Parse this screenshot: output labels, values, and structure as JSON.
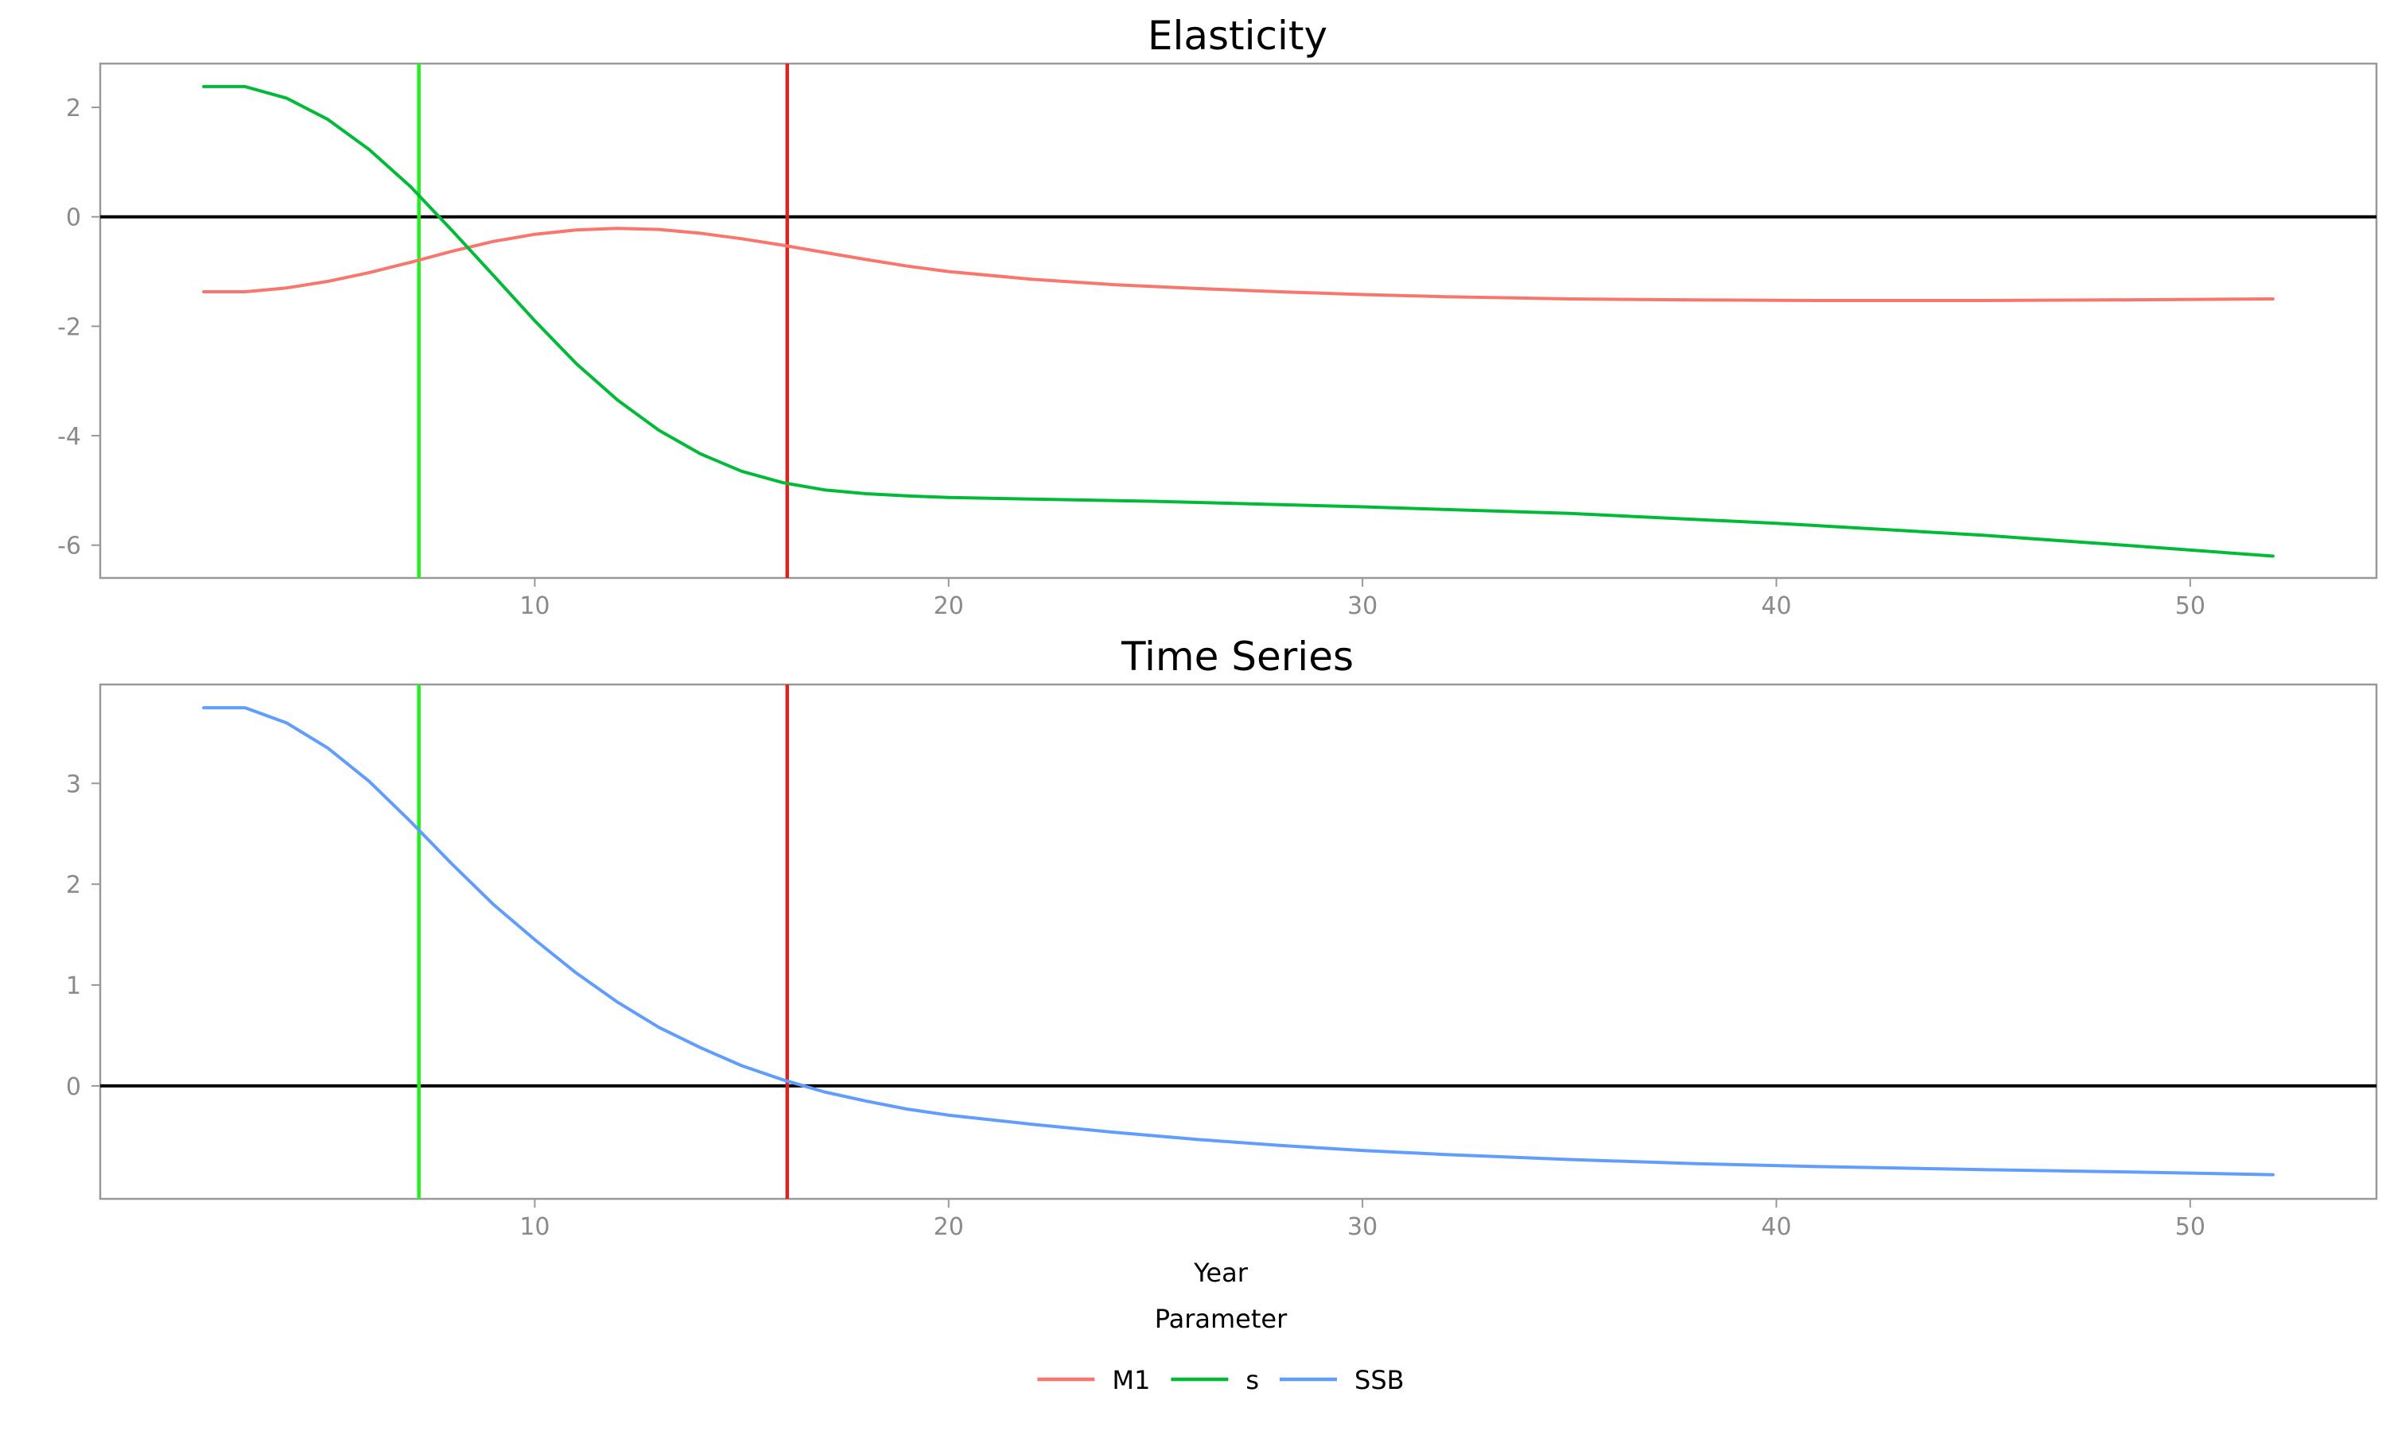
{
  "chart_data": [
    {
      "type": "line",
      "title": "Elasticity",
      "xlabel": "",
      "ylabel": "",
      "xlim": [
        -0.5,
        54.5
      ],
      "ylim": [
        -6.6,
        2.8
      ],
      "xticks": [
        10,
        20,
        30,
        40,
        50
      ],
      "yticks": [
        2,
        0,
        -2,
        -4,
        -6
      ],
      "hline": 0,
      "vlines": [
        {
          "x": 7.2,
          "color": "#22ee22"
        },
        {
          "x": 16.1,
          "color": "#dd2222"
        }
      ],
      "grid": false,
      "series": [
        {
          "name": "M1",
          "color": "#f8766d",
          "points": [
            [
              2,
              -1.37
            ],
            [
              3,
              -1.37
            ],
            [
              4,
              -1.3
            ],
            [
              5,
              -1.18
            ],
            [
              6,
              -1.02
            ],
            [
              7,
              -0.83
            ],
            [
              8,
              -0.63
            ],
            [
              9,
              -0.45
            ],
            [
              10,
              -0.32
            ],
            [
              11,
              -0.24
            ],
            [
              12,
              -0.21
            ],
            [
              13,
              -0.23
            ],
            [
              14,
              -0.3
            ],
            [
              15,
              -0.4
            ],
            [
              16,
              -0.52
            ],
            [
              17,
              -0.65
            ],
            [
              18,
              -0.78
            ],
            [
              19,
              -0.9
            ],
            [
              20,
              -1.0
            ],
            [
              22,
              -1.14
            ],
            [
              24,
              -1.24
            ],
            [
              26,
              -1.31
            ],
            [
              28,
              -1.37
            ],
            [
              30,
              -1.42
            ],
            [
              32,
              -1.46
            ],
            [
              35,
              -1.5
            ],
            [
              38,
              -1.52
            ],
            [
              41,
              -1.53
            ],
            [
              45,
              -1.53
            ],
            [
              48,
              -1.52
            ],
            [
              52,
              -1.5
            ]
          ]
        },
        {
          "name": "s",
          "color": "#00ba38",
          "points": [
            [
              2,
              2.38
            ],
            [
              3,
              2.38
            ],
            [
              4,
              2.17
            ],
            [
              5,
              1.78
            ],
            [
              6,
              1.23
            ],
            [
              7,
              0.55
            ],
            [
              8,
              -0.25
            ],
            [
              9,
              -1.07
            ],
            [
              10,
              -1.9
            ],
            [
              11,
              -2.68
            ],
            [
              12,
              -3.35
            ],
            [
              13,
              -3.9
            ],
            [
              14,
              -4.33
            ],
            [
              15,
              -4.65
            ],
            [
              16,
              -4.86
            ],
            [
              17,
              -4.99
            ],
            [
              18,
              -5.06
            ],
            [
              19,
              -5.1
            ],
            [
              20,
              -5.13
            ],
            [
              25,
              -5.2
            ],
            [
              30,
              -5.3
            ],
            [
              35,
              -5.42
            ],
            [
              40,
              -5.6
            ],
            [
              45,
              -5.82
            ],
            [
              48,
              -5.98
            ],
            [
              52,
              -6.2
            ]
          ]
        }
      ]
    },
    {
      "type": "line",
      "title": "Time Series",
      "xlabel": "Year",
      "ylabel": "",
      "xlim": [
        -0.5,
        54.5
      ],
      "ylim": [
        -1.12,
        3.98
      ],
      "xticks": [
        10,
        20,
        30,
        40,
        50
      ],
      "yticks": [
        3,
        2,
        1,
        0
      ],
      "hline": 0,
      "vlines": [
        {
          "x": 7.2,
          "color": "#22ee22"
        },
        {
          "x": 16.1,
          "color": "#dd2222"
        }
      ],
      "grid": false,
      "series": [
        {
          "name": "SSB",
          "color": "#619cff",
          "points": [
            [
              2,
              3.75
            ],
            [
              3,
              3.75
            ],
            [
              4,
              3.6
            ],
            [
              5,
              3.35
            ],
            [
              6,
              3.02
            ],
            [
              7,
              2.62
            ],
            [
              8,
              2.2
            ],
            [
              9,
              1.8
            ],
            [
              10,
              1.45
            ],
            [
              11,
              1.12
            ],
            [
              12,
              0.83
            ],
            [
              13,
              0.58
            ],
            [
              14,
              0.38
            ],
            [
              15,
              0.2
            ],
            [
              16,
              0.06
            ],
            [
              17,
              -0.06
            ],
            [
              18,
              -0.15
            ],
            [
              19,
              -0.23
            ],
            [
              20,
              -0.29
            ],
            [
              22,
              -0.38
            ],
            [
              24,
              -0.46
            ],
            [
              26,
              -0.53
            ],
            [
              28,
              -0.59
            ],
            [
              30,
              -0.64
            ],
            [
              32,
              -0.68
            ],
            [
              35,
              -0.73
            ],
            [
              38,
              -0.77
            ],
            [
              41,
              -0.8
            ],
            [
              45,
              -0.83
            ],
            [
              48,
              -0.85
            ],
            [
              52,
              -0.88
            ]
          ]
        }
      ]
    }
  ],
  "legend": {
    "title": "Parameter",
    "items": [
      {
        "label": "M1",
        "color": "#f8766d"
      },
      {
        "label": "s",
        "color": "#00ba38"
      },
      {
        "label": "SSB",
        "color": "#619cff"
      }
    ]
  }
}
